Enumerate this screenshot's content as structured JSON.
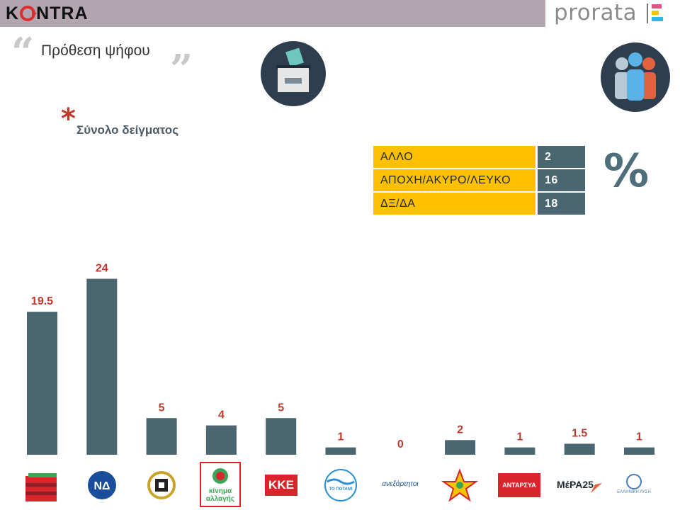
{
  "header": {
    "brand_left": "KONTRA",
    "brand_right": "prorata"
  },
  "title": "Πρόθεση ψήφου",
  "sample_label": "Σύνολο δείγματος",
  "asterisk": "*",
  "percent_sign": "%",
  "other_table": [
    {
      "label": "ΑΛΛΟ",
      "value": "2"
    },
    {
      "label": "ΑΠΟΧΗ/ΑΚΥΡΟ/ΛΕΥΚΟ",
      "value": "16"
    },
    {
      "label": "ΔΞ/ΔΑ",
      "value": "18"
    }
  ],
  "colors": {
    "bar": "#4a6670",
    "value_label": "#c0392b",
    "table_label_bg": "#ffc000",
    "table_value_bg": "#4a6670",
    "header_band": "#b3a5b0"
  },
  "chart_data": {
    "type": "bar",
    "title": "",
    "xlabel": "",
    "ylabel": "",
    "ylim": [
      0,
      26
    ],
    "grid": false,
    "legend": "none",
    "categories": [
      "",
      "",
      "",
      "",
      "",
      "",
      "",
      "",
      "",
      "",
      ""
    ],
    "values": [
      19.5,
      24,
      5,
      4,
      5,
      1,
      0,
      2,
      1,
      1.5,
      1
    ],
    "value_labels": [
      "19.5",
      "24",
      "5",
      "4",
      "5",
      "1",
      "0",
      "2",
      "1",
      "1.5",
      "1"
    ]
  },
  "party_logos": [
    {
      "icon": "syriza-logo",
      "text": ""
    },
    {
      "icon": "nd-logo",
      "text": ""
    },
    {
      "icon": "golden-dawn-logo",
      "text": ""
    },
    {
      "icon": "kinal-logo",
      "text": "κίνημα αλλαγής"
    },
    {
      "icon": "kke-logo",
      "text": "ΚΚΕ"
    },
    {
      "icon": "potami-logo",
      "text": "ΤΟ ΠΟΤΑΜΙ"
    },
    {
      "icon": "anel-logo",
      "text": "ανεξάρτητοι"
    },
    {
      "icon": "enosi-kentroon-logo",
      "text": ""
    },
    {
      "icon": "antarsya-logo",
      "text": "ΑΝΤΑΡΣΥΑ"
    },
    {
      "icon": "mera25-logo",
      "text": "ΜέΡΑ25"
    },
    {
      "icon": "elliniki-lysi-logo",
      "text": "ΕΛΛΗΝΙΚΗ ΛΥΣΗ"
    }
  ]
}
